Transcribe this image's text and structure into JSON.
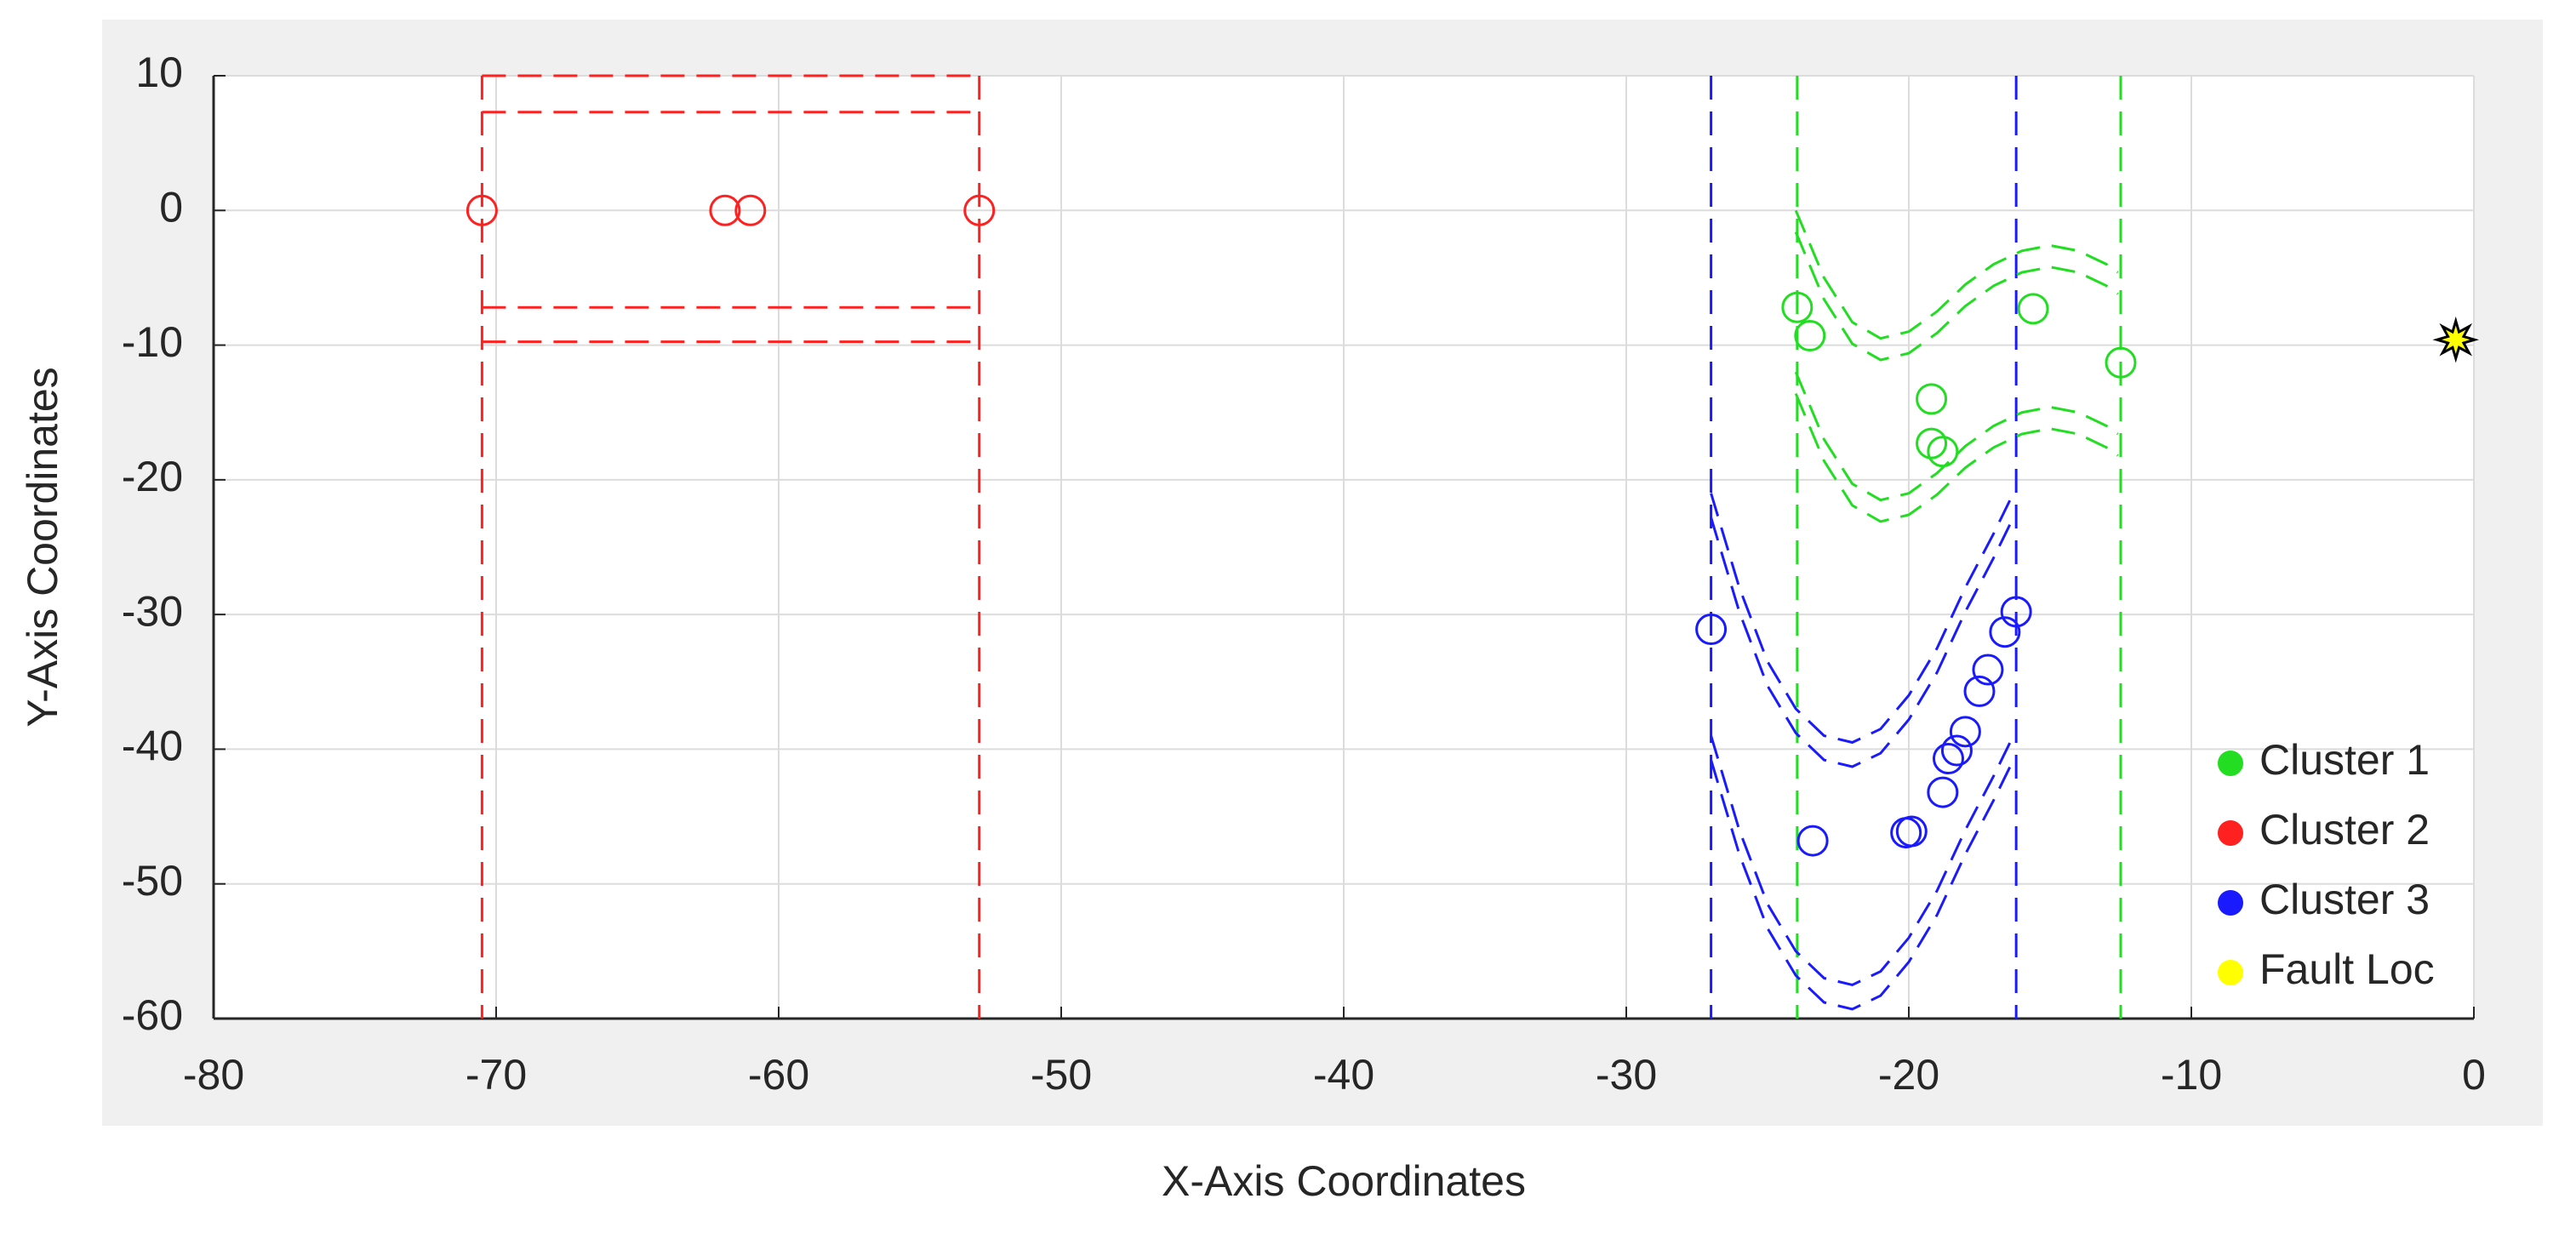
{
  "chart_data": {
    "type": "scatter",
    "x_label": "X-Axis Coordinates",
    "y_label": "Y-Axis Coordinates",
    "xlim": [
      -80,
      0
    ],
    "ylim": [
      -60,
      10
    ],
    "xticks": [
      -80,
      -70,
      -60,
      -50,
      -40,
      -30,
      -20,
      -10,
      0
    ],
    "yticks": [
      -60,
      -50,
      -40,
      -30,
      -20,
      -10,
      0,
      10
    ],
    "grid": true,
    "legend_position": "lower-right",
    "series": [
      {
        "name": "Cluster 1",
        "color": "#22dd22",
        "marker": "circle",
        "x": [
          -23.95,
          -23.5,
          -19.2,
          -19.2,
          -18.8,
          -15.6,
          -12.5
        ],
        "y": [
          -7.2,
          -9.3,
          -14.0,
          -17.3,
          -17.9,
          -7.3,
          -11.3
        ]
      },
      {
        "name": "Cluster 2",
        "color": "#ff2020",
        "marker": "circle",
        "x": [
          -70.5,
          -61.9,
          -61.0,
          -52.9
        ],
        "y": [
          0,
          0,
          0,
          0
        ]
      },
      {
        "name": "Cluster 3",
        "color": "#1a1aff",
        "marker": "circle",
        "x": [
          -27.0,
          -23.4,
          -20.1,
          -19.9,
          -18.8,
          -18.6,
          -18.3,
          -18.0,
          -17.5,
          -17.2,
          -16.6,
          -16.2
        ],
        "y": [
          -31.1,
          -46.8,
          -46.2,
          -46.1,
          -43.2,
          -40.7,
          -40.1,
          -38.7,
          -35.7,
          -34.1,
          -31.3,
          -29.8
        ]
      },
      {
        "name": "Fault Loc",
        "color": "#ffff00",
        "marker": "star",
        "x": [
          -0.64
        ],
        "y": [
          -9.6
        ]
      }
    ],
    "boundaries": [
      {
        "color": "#ff2020",
        "x": [
          -70.5,
          -70.5
        ],
        "y": [
          10,
          -60
        ]
      },
      {
        "color": "#ff2020",
        "x": [
          -52.9,
          -52.9
        ],
        "y": [
          10,
          -60
        ]
      },
      {
        "color": "#ff2020",
        "x": [
          -70.5,
          -52.9
        ],
        "y": [
          10,
          10
        ]
      },
      {
        "color": "#ff2020",
        "x": [
          -70.5,
          -52.9
        ],
        "y": [
          7.3,
          7.3
        ]
      },
      {
        "color": "#ff2020",
        "x": [
          -70.5,
          -52.9
        ],
        "y": [
          -7.2,
          -7.2
        ]
      },
      {
        "color": "#ff2020",
        "x": [
          -70.5,
          -52.9
        ],
        "y": [
          -9.75,
          -9.75
        ]
      },
      {
        "color": "#1a1aff",
        "x": [
          -27.0,
          -27.0
        ],
        "y": [
          10,
          -60
        ]
      },
      {
        "color": "#1a1aff",
        "x": [
          -16.2,
          -16.2
        ],
        "y": [
          10,
          -60
        ]
      },
      {
        "color": "#22dd22",
        "x": [
          -23.95,
          -23.95
        ],
        "y": [
          10,
          -60
        ]
      },
      {
        "color": "#22dd22",
        "x": [
          -12.5,
          -12.5
        ],
        "y": [
          10,
          -60
        ]
      },
      {
        "color": "#22dd22",
        "x": [
          -24,
          -23,
          -22,
          -21,
          -20,
          -19,
          -18,
          -17,
          -16,
          -15,
          -14,
          -13,
          -12.6
        ],
        "y": [
          0,
          -5,
          -8.3,
          -9.5,
          -9,
          -7.5,
          -5.5,
          -4,
          -3,
          -2.6,
          -3,
          -4,
          -4.6
        ]
      },
      {
        "color": "#22dd22",
        "x": [
          -24,
          -23,
          -22,
          -21,
          -20,
          -19,
          -18,
          -17,
          -16,
          -15,
          -14,
          -13,
          -12.6
        ],
        "y": [
          -1.6,
          -6.6,
          -9.9,
          -11.1,
          -10.6,
          -9.1,
          -7.1,
          -5.6,
          -4.6,
          -4.2,
          -4.6,
          -5.6,
          -6.2
        ]
      },
      {
        "color": "#22dd22",
        "x": [
          -24,
          -23,
          -22,
          -21,
          -20,
          -19,
          -18,
          -17,
          -16,
          -15,
          -14,
          -13,
          -12.6
        ],
        "y": [
          -12,
          -17,
          -20.3,
          -21.5,
          -21,
          -19.5,
          -17.5,
          -16,
          -15,
          -14.6,
          -15,
          -16,
          -16.6
        ]
      },
      {
        "color": "#22dd22",
        "x": [
          -24,
          -23,
          -22,
          -21,
          -20,
          -19,
          -18,
          -17,
          -16,
          -15,
          -14,
          -13,
          -12.6
        ],
        "y": [
          -13.6,
          -18.6,
          -21.9,
          -23.1,
          -22.6,
          -21.1,
          -19.1,
          -17.6,
          -16.6,
          -16.2,
          -16.6,
          -17.6,
          -18.2
        ]
      },
      {
        "color": "#1a1aff",
        "x": [
          -27,
          -26,
          -25,
          -24,
          -23,
          -22,
          -21,
          -20,
          -19,
          -18,
          -17,
          -16.3
        ],
        "y": [
          -21,
          -28,
          -33.5,
          -37,
          -39,
          -39.5,
          -38.5,
          -36,
          -32.5,
          -28,
          -24,
          -21
        ]
      },
      {
        "color": "#1a1aff",
        "x": [
          -27,
          -26,
          -25,
          -24,
          -23,
          -22,
          -21,
          -20,
          -19,
          -18,
          -17,
          -16.3
        ],
        "y": [
          -22.8,
          -29.8,
          -35.3,
          -38.8,
          -40.8,
          -41.3,
          -40.3,
          -37.8,
          -34.3,
          -29.8,
          -25.8,
          -22.8
        ]
      },
      {
        "color": "#1a1aff",
        "x": [
          -27,
          -26,
          -25,
          -24,
          -23,
          -22,
          -21,
          -20,
          -19,
          -18,
          -17,
          -16.3
        ],
        "y": [
          -39,
          -46,
          -51.5,
          -55,
          -57,
          -57.5,
          -56.5,
          -54,
          -50.5,
          -46,
          -42,
          -39
        ]
      },
      {
        "color": "#1a1aff",
        "x": [
          -27,
          -26,
          -25,
          -24,
          -23,
          -22,
          -21,
          -20,
          -19,
          -18,
          -17,
          -16.3
        ],
        "y": [
          -40.8,
          -47.8,
          -53.3,
          -56.8,
          -58.8,
          -59.3,
          -58.3,
          -55.8,
          -52.3,
          -47.8,
          -43.8,
          -40.8
        ]
      }
    ]
  }
}
